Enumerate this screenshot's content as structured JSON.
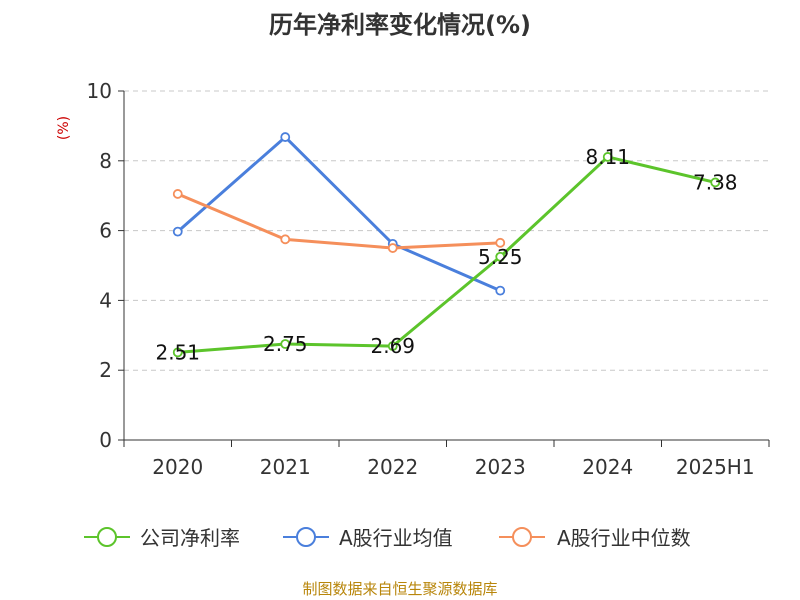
{
  "chart_data": {
    "type": "line",
    "title": "历年净利率变化情况(%)",
    "ylabel": "(%)",
    "ylim": [
      0,
      10
    ],
    "yticks": [
      0,
      2,
      4,
      6,
      8,
      10
    ],
    "categories": [
      "2020",
      "2021",
      "2022",
      "2023",
      "2024",
      "2025H1"
    ],
    "grid": true,
    "legend_position": "bottom",
    "series": [
      {
        "name": "公司净利率",
        "color": "#5cc42b",
        "values": [
          2.51,
          2.75,
          2.69,
          5.25,
          8.11,
          7.38
        ],
        "labels": [
          "2.51",
          "2.75",
          "2.69",
          "5.25",
          "8.11",
          "7.38"
        ]
      },
      {
        "name": "A股行业均值",
        "color": "#4a7fdc",
        "values": [
          5.97,
          8.68,
          5.62,
          4.28,
          null,
          null
        ],
        "labels": []
      },
      {
        "name": "A股行业中位数",
        "color": "#f58f5b",
        "values": [
          7.05,
          5.75,
          5.5,
          5.65,
          null,
          null
        ],
        "labels": []
      }
    ]
  },
  "source": "制图数据来自恒生聚源数据库"
}
